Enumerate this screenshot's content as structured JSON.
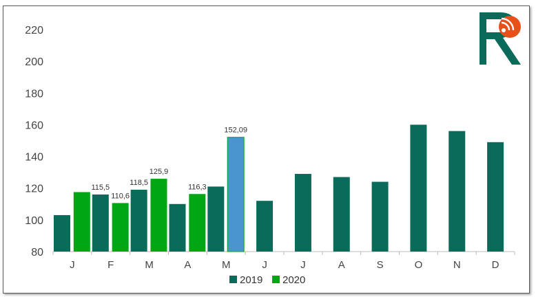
{
  "chart_data": {
    "type": "bar",
    "categories": [
      "J",
      "F",
      "M",
      "A",
      "M",
      "J",
      "J",
      "A",
      "S",
      "O",
      "N",
      "D"
    ],
    "series": [
      {
        "name": "2019",
        "color": "#0b6b5a",
        "values": [
          103,
          116,
          119,
          110,
          121,
          112,
          129,
          127,
          124,
          160,
          156,
          149
        ]
      },
      {
        "name": "2020",
        "color": "#00a614",
        "values": [
          117.5,
          110.6,
          125.9,
          116.3,
          152.09,
          null,
          null,
          null,
          null,
          null,
          null,
          null
        ]
      }
    ],
    "data_labels": [
      {
        "series": 0,
        "index": 1,
        "text": "115,5"
      },
      {
        "series": 1,
        "index": 1,
        "text": "110,6"
      },
      {
        "series": 0,
        "index": 2,
        "text": "118,5"
      },
      {
        "series": 1,
        "index": 2,
        "text": "125,9"
      },
      {
        "series": 1,
        "index": 3,
        "text": "116,3"
      },
      {
        "series": 1,
        "index": 4,
        "text": "152,09"
      }
    ],
    "highlight": {
      "series": 1,
      "index": 4,
      "color": "#4a95d0"
    },
    "yticks": [
      80,
      100,
      120,
      140,
      160,
      180,
      200,
      220
    ],
    "ylim": [
      80,
      230
    ],
    "grid": false,
    "legend_position": "bottom",
    "title": "",
    "xlabel": "",
    "ylabel": ""
  },
  "logo": {
    "name": "logo-r-icon",
    "colors": [
      "#0b6b5a",
      "#e8501a"
    ]
  }
}
